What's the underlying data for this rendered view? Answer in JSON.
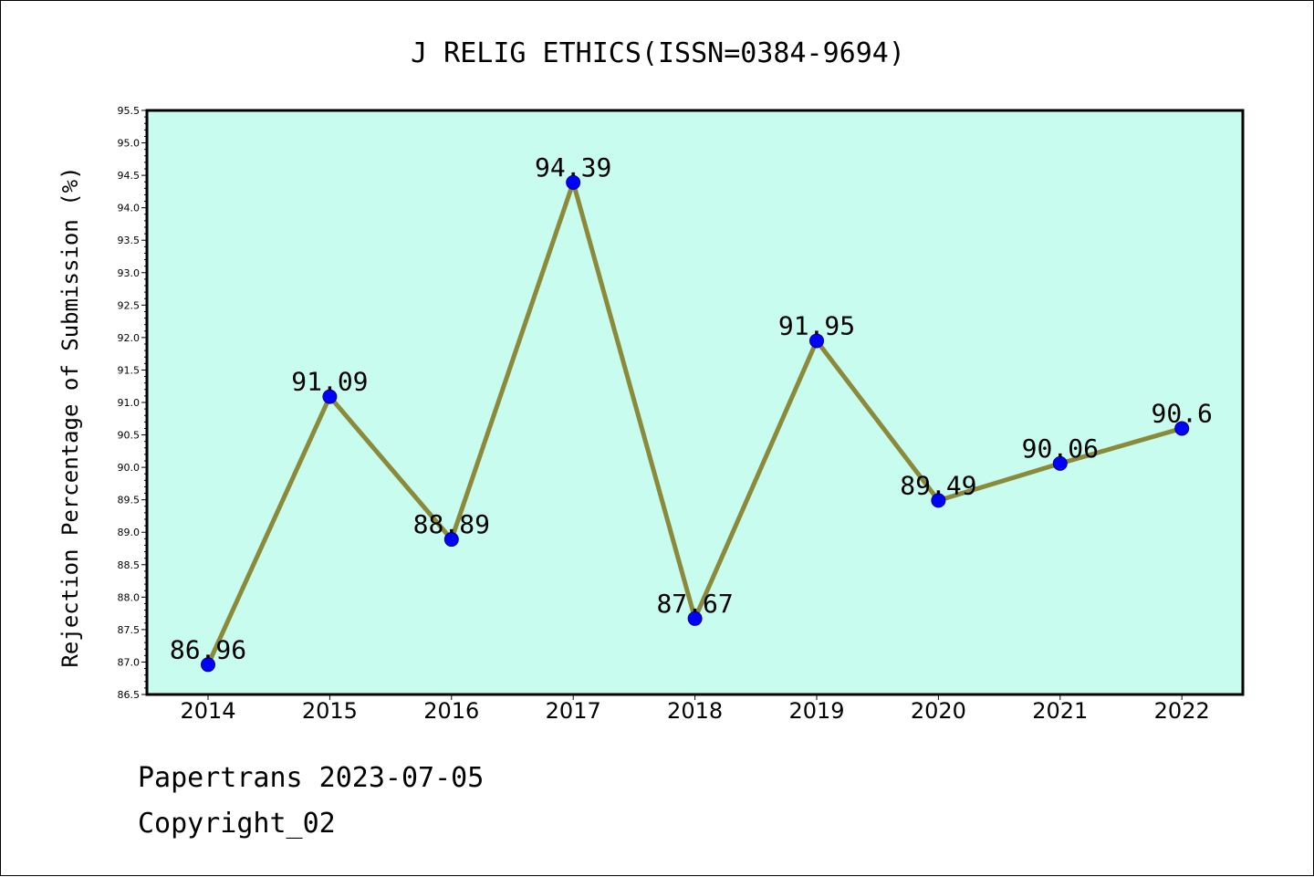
{
  "chart_data": {
    "type": "line",
    "title": "J RELIG ETHICS(ISSN=0384-9694)",
    "xlabel": "",
    "ylabel": "Rejection Percentage of Submission (%)",
    "categories": [
      "2014",
      "2015",
      "2016",
      "2017",
      "2018",
      "2019",
      "2020",
      "2021",
      "2022"
    ],
    "series": [
      {
        "values": [
          86.96,
          91.09,
          88.89,
          94.39,
          87.67,
          91.95,
          89.49,
          90.06,
          90.6
        ],
        "data_labels": [
          "86.96",
          "91.09",
          "88.89",
          "94.39",
          "87.67",
          "91.95",
          "89.49",
          "90.06",
          "90.6"
        ]
      }
    ],
    "ylim": [
      86.5,
      95.5
    ],
    "yticks": [
      "86.5",
      "87.0",
      "87.5",
      "88.0",
      "88.5",
      "89.0",
      "89.5",
      "90.0",
      "90.5",
      "91.0",
      "91.5",
      "92.0",
      "92.5",
      "93.0",
      "93.5",
      "94.0",
      "94.5",
      "95.0",
      "95.5"
    ],
    "grid": false,
    "colors": {
      "plot_background": "#c8fcee",
      "line": "#8b8a3a",
      "marker": "#0000ff"
    }
  },
  "footer": {
    "line1": "Papertrans 2023-07-05",
    "line2": "Copyright_02"
  }
}
